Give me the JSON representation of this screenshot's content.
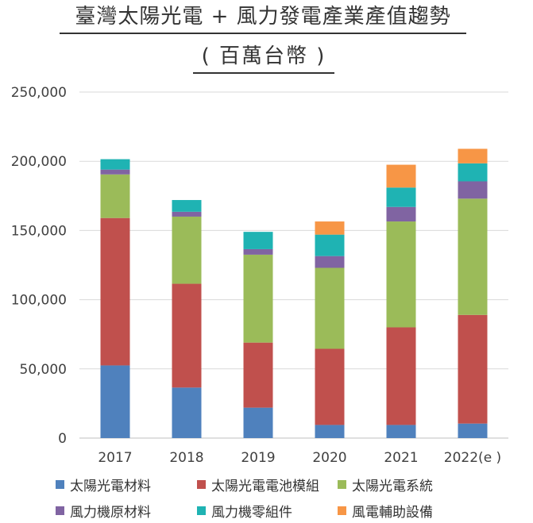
{
  "header": {
    "title": "臺灣太陽光電 + 風力發電產業產值趨勢",
    "subtitle": "( 百萬台幣 )"
  },
  "chart_data": {
    "type": "bar",
    "stacked": true,
    "categories": [
      "2017",
      "2018",
      "2019",
      "2020",
      "2021",
      "2022(e )"
    ],
    "ylim": [
      0,
      250000
    ],
    "yticks": [
      0,
      50000,
      100000,
      150000,
      200000,
      250000
    ],
    "ytick_labels": [
      "0",
      "50,000",
      "100,000",
      "150,000",
      "200,000",
      "250,000"
    ],
    "grid": true,
    "legend_position": "bottom",
    "series": [
      {
        "name": "太陽光電材料",
        "color": "#4F81BD",
        "values": [
          52500,
          36500,
          22000,
          9500,
          9500,
          10500
        ]
      },
      {
        "name": "太陽光電電池模組",
        "color": "#C0504D",
        "values": [
          106500,
          75000,
          47000,
          55000,
          70500,
          78500
        ]
      },
      {
        "name": "太陽光電系統",
        "color": "#9BBB59",
        "values": [
          31500,
          48500,
          63500,
          58500,
          76500,
          84000
        ]
      },
      {
        "name": "風力機原材料",
        "color": "#8064A2",
        "values": [
          3500,
          3500,
          4000,
          8500,
          10500,
          12500
        ]
      },
      {
        "name": "風力機零組件",
        "color": "#1FB3B3",
        "values": [
          7500,
          8500,
          12500,
          15500,
          14000,
          13000
        ]
      },
      {
        "name": "風電輔助設備",
        "color": "#F79646",
        "values": [
          0,
          0,
          0,
          9500,
          16500,
          10500
        ]
      }
    ]
  }
}
